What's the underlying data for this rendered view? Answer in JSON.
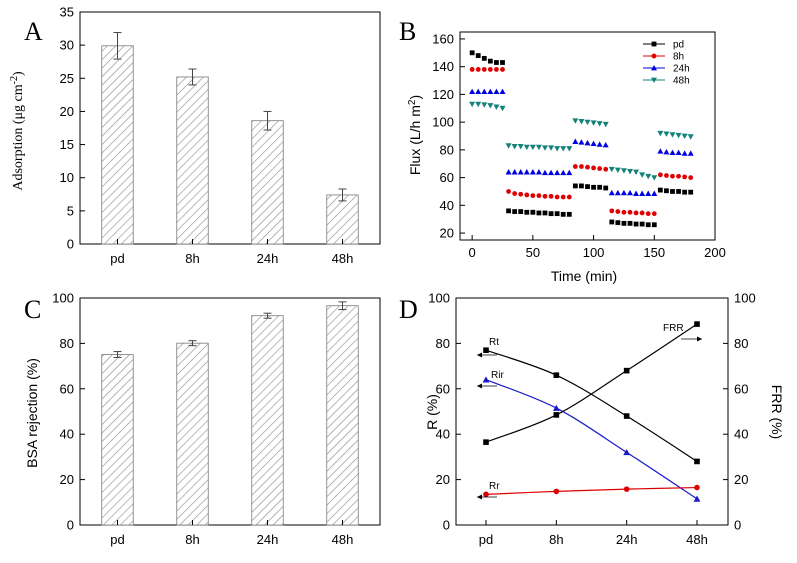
{
  "chart_data": [
    {
      "panel": "A",
      "type": "bar",
      "categories": [
        "pd",
        "8h",
        "24h",
        "48h"
      ],
      "values": [
        29.9,
        25.2,
        18.6,
        7.4
      ],
      "errors": [
        2.0,
        1.2,
        1.4,
        0.9
      ],
      "ylabel": "Adsorption (μg cm⁻²)",
      "ylabel_main": "Adsorption (μg cm",
      "ylabel_sup": "-2",
      "ylabel_close": ")",
      "ylim": [
        0,
        35
      ],
      "yticks": [
        0,
        5,
        10,
        15,
        20,
        25,
        30,
        35
      ],
      "bar_pattern": "diagonal-hatch"
    },
    {
      "panel": "B",
      "type": "scatter",
      "xlabel": "Time (min)",
      "ylabel": "Flux (L/h m²)",
      "ylabel_main": "Flux (L/h m",
      "ylabel_sup": "2",
      "ylabel_close": ")",
      "xlim": [
        -10,
        200
      ],
      "ylim": [
        15,
        165
      ],
      "xticks": [
        0,
        50,
        100,
        150,
        200
      ],
      "yticks": [
        20,
        40,
        60,
        80,
        100,
        120,
        140,
        160
      ],
      "legend_position": "top-right",
      "series": [
        {
          "name": "pd",
          "color": "#000000",
          "marker": "square",
          "x": [
            0,
            5,
            10,
            15,
            20,
            25,
            30,
            35,
            40,
            45,
            50,
            55,
            60,
            65,
            70,
            75,
            80,
            85,
            90,
            95,
            100,
            105,
            110,
            115,
            120,
            125,
            130,
            135,
            140,
            145,
            150,
            155,
            160,
            165,
            170,
            175,
            180
          ],
          "y": [
            150,
            148,
            146,
            144,
            143,
            143,
            36,
            35.5,
            35.5,
            35,
            35,
            34.5,
            34.5,
            34,
            34,
            33.5,
            33.5,
            54,
            54,
            53.5,
            53,
            53,
            52.5,
            28,
            27.5,
            27,
            27,
            26.5,
            26.5,
            26,
            26,
            51,
            50.5,
            50,
            50,
            49.5,
            49.5
          ]
        },
        {
          "name": "8h",
          "color": "#e00000",
          "marker": "circle",
          "x": [
            0,
            5,
            10,
            15,
            20,
            25,
            30,
            35,
            40,
            45,
            50,
            55,
            60,
            65,
            70,
            75,
            80,
            85,
            90,
            95,
            100,
            105,
            110,
            115,
            120,
            125,
            130,
            135,
            140,
            145,
            150,
            155,
            160,
            165,
            170,
            175,
            180
          ],
          "y": [
            138,
            138,
            138,
            138,
            138,
            138,
            50,
            48.5,
            48,
            47.5,
            47,
            47,
            46.5,
            46.5,
            46,
            46,
            46,
            68,
            68,
            67.5,
            67,
            66.5,
            66,
            36,
            35.5,
            35,
            35,
            34.5,
            34.5,
            34,
            34,
            62,
            61.5,
            61,
            61,
            60.5,
            60
          ]
        },
        {
          "name": "24h",
          "color": "#0000e0",
          "marker": "triangle-up",
          "x": [
            0,
            5,
            10,
            15,
            20,
            25,
            30,
            35,
            40,
            45,
            50,
            55,
            60,
            65,
            70,
            75,
            80,
            85,
            90,
            95,
            100,
            105,
            110,
            115,
            120,
            125,
            130,
            135,
            140,
            145,
            150,
            155,
            160,
            165,
            170,
            175,
            180
          ],
          "y": [
            122,
            122,
            122,
            122,
            122,
            122,
            64,
            64,
            64,
            64,
            64,
            64,
            63.5,
            63.5,
            63.5,
            63.5,
            63.5,
            86,
            85.5,
            85,
            84.5,
            84,
            83.5,
            49,
            49,
            49,
            49,
            48.5,
            48.5,
            48.5,
            48.5,
            79,
            78.5,
            78,
            78,
            77.5,
            77.5
          ]
        },
        {
          "name": "48h",
          "color": "#13837a",
          "marker": "triangle-down",
          "x": [
            0,
            5,
            10,
            15,
            20,
            25,
            30,
            35,
            40,
            45,
            50,
            55,
            60,
            65,
            70,
            75,
            80,
            85,
            90,
            95,
            100,
            105,
            110,
            115,
            120,
            125,
            130,
            135,
            140,
            145,
            150,
            155,
            160,
            165,
            170,
            175,
            180
          ],
          "y": [
            113,
            113,
            112.5,
            112,
            111,
            110,
            83,
            82.5,
            82.5,
            82,
            82,
            82,
            81.5,
            81.5,
            81,
            81,
            81,
            101,
            100.5,
            100,
            99.5,
            99,
            98.5,
            66,
            65.5,
            65,
            64.5,
            64,
            62,
            61,
            60,
            92,
            91.5,
            91,
            90.5,
            90,
            89.5
          ]
        }
      ]
    },
    {
      "panel": "C",
      "type": "bar",
      "categories": [
        "pd",
        "8h",
        "24h",
        "48h"
      ],
      "values": [
        75.1,
        80.1,
        92.2,
        96.6
      ],
      "errors": [
        1.3,
        1.1,
        1.1,
        1.7
      ],
      "ylabel": "BSA rejection (%)",
      "ylim": [
        0,
        100
      ],
      "yticks": [
        0,
        20,
        40,
        60,
        80,
        100
      ],
      "bar_pattern": "diagonal-hatch"
    },
    {
      "panel": "D",
      "type": "line",
      "categories": [
        "pd",
        "8h",
        "24h",
        "48h"
      ],
      "ylabel": "R (%)",
      "y2label": "FRR (%)",
      "ylim": [
        0,
        100
      ],
      "y2lim": [
        0,
        100
      ],
      "yticks": [
        0,
        20,
        40,
        60,
        80,
        100
      ],
      "series": [
        {
          "name": "Rt",
          "axis": "left",
          "color": "#000000",
          "marker": "square",
          "values": [
            77,
            66,
            48,
            28
          ]
        },
        {
          "name": "Rir",
          "axis": "left",
          "color": "#1a1acc",
          "marker": "triangle-up",
          "values": [
            64,
            51.5,
            32,
            11.5
          ]
        },
        {
          "name": "Rr",
          "axis": "left",
          "color": "#dd0000",
          "marker": "circle",
          "values": [
            13.5,
            14.8,
            15.8,
            16.5
          ]
        },
        {
          "name": "FRR",
          "axis": "right",
          "color": "#000000",
          "marker": "square",
          "values": [
            36.5,
            48.5,
            68,
            88.5
          ]
        }
      ]
    }
  ]
}
